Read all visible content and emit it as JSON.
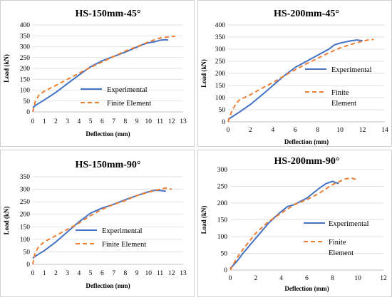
{
  "colors": {
    "experimental": "#4472C4",
    "fe": "#ED7D31",
    "grid": "#d9d9d9",
    "axis": "#bfbfbf"
  },
  "chart_data": [
    {
      "type": "line",
      "title": "HS-150mm-45°",
      "xlabel": "Deflection (mm)",
      "ylabel": "Load (kN)",
      "xlim": [
        0,
        13
      ],
      "ylim": [
        0,
        400
      ],
      "xticks": [
        0,
        1,
        2,
        3,
        4,
        5,
        6,
        7,
        8,
        9,
        10,
        11,
        12,
        13
      ],
      "yticks": [
        0,
        50,
        100,
        150,
        200,
        250,
        300,
        350,
        400
      ],
      "grid": "horizontal",
      "legend": "right",
      "series": [
        {
          "name": "Experimental",
          "style": "solid",
          "x": [
            0,
            0.3,
            1,
            2,
            3,
            4,
            5,
            6,
            7,
            8,
            9,
            9.5,
            10,
            10.5,
            11,
            11.5,
            11.7
          ],
          "y": [
            20,
            32,
            55,
            90,
            130,
            170,
            208,
            235,
            255,
            275,
            298,
            310,
            318,
            322,
            330,
            332,
            330
          ]
        },
        {
          "name": "Finite Element",
          "style": "dashed",
          "x": [
            0,
            0.2,
            0.5,
            1,
            2,
            3,
            4,
            5,
            6,
            7,
            8,
            9,
            10,
            11,
            12,
            12.3
          ],
          "y": [
            0,
            45,
            75,
            95,
            122,
            150,
            178,
            205,
            230,
            255,
            280,
            300,
            322,
            340,
            347,
            348
          ]
        }
      ]
    },
    {
      "type": "line",
      "title": "HS-200mm-45°",
      "xlabel": "Deflection (mm)",
      "ylabel": "Load (kN)",
      "xlim": [
        0,
        14
      ],
      "ylim": [
        0,
        400
      ],
      "xticks": [
        0,
        2,
        4,
        6,
        8,
        10,
        12,
        14
      ],
      "yticks": [
        0,
        50,
        100,
        150,
        200,
        250,
        300,
        350,
        400
      ],
      "grid": "horizontal",
      "legend": "right",
      "series": [
        {
          "name": "Experimental",
          "style": "solid",
          "x": [
            0,
            0.5,
            1,
            2,
            3,
            4,
            5,
            6,
            7,
            8,
            9,
            9.5,
            10,
            10.5,
            11,
            11.5,
            12
          ],
          "y": [
            10,
            25,
            40,
            72,
            110,
            150,
            190,
            225,
            250,
            275,
            300,
            318,
            325,
            330,
            335,
            338,
            335
          ]
        },
        {
          "name": "Finite Element",
          "style": "dashed",
          "x": [
            0,
            0.3,
            0.7,
            1,
            2,
            3,
            4,
            5,
            6,
            7,
            8,
            9,
            10,
            11,
            12,
            12.5,
            13
          ],
          "y": [
            0,
            40,
            75,
            90,
            112,
            138,
            162,
            190,
            215,
            240,
            262,
            285,
            305,
            320,
            333,
            338,
            340
          ]
        }
      ]
    },
    {
      "type": "line",
      "title": "HS-150mm-90°",
      "xlabel": "Deflection (mm)",
      "ylabel": "Load (kN)",
      "xlim": [
        0,
        13
      ],
      "ylim": [
        0,
        350
      ],
      "xticks": [
        0,
        1,
        2,
        3,
        4,
        5,
        6,
        7,
        8,
        9,
        10,
        11,
        12,
        13
      ],
      "yticks": [
        0,
        50,
        100,
        150,
        200,
        250,
        300,
        350
      ],
      "grid": "horizontal",
      "legend": "bottom-right",
      "series": [
        {
          "name": "Experimental",
          "style": "solid",
          "x": [
            0,
            0.3,
            1,
            2,
            3,
            4,
            5,
            6,
            7,
            8,
            9,
            10,
            10.5,
            11,
            11.5
          ],
          "y": [
            25,
            35,
            55,
            90,
            130,
            170,
            205,
            225,
            240,
            258,
            275,
            290,
            295,
            295,
            292
          ]
        },
        {
          "name": "Finite Element",
          "style": "dashed",
          "x": [
            0,
            0.2,
            0.5,
            1,
            2,
            3,
            4,
            5,
            6,
            7,
            8,
            9,
            10,
            11,
            11.5,
            12
          ],
          "y": [
            0,
            45,
            70,
            90,
            115,
            140,
            165,
            195,
            220,
            240,
            255,
            275,
            288,
            300,
            305,
            300
          ]
        }
      ]
    },
    {
      "type": "line",
      "title": "HS-200mm-90°",
      "xlabel": "Deflection (mm)",
      "ylabel": "Load (kN)",
      "xlim": [
        0,
        12
      ],
      "ylim": [
        0,
        300
      ],
      "xticks": [
        0,
        2,
        4,
        6,
        8,
        10,
        12
      ],
      "yticks": [
        0,
        50,
        100,
        150,
        200,
        250,
        300
      ],
      "grid": "horizontal",
      "legend": "right",
      "series": [
        {
          "name": "Experimental",
          "style": "solid",
          "x": [
            0,
            0.5,
            1,
            2,
            3,
            3.5,
            4,
            4.5,
            5,
            6,
            7,
            7.5,
            8,
            8.5
          ],
          "y": [
            5,
            25,
            50,
            95,
            140,
            158,
            175,
            190,
            195,
            215,
            245,
            258,
            265,
            258
          ]
        },
        {
          "name": "Finite Element",
          "style": "dashed",
          "x": [
            0,
            0.5,
            1,
            2,
            3,
            4,
            5,
            6,
            7,
            8,
            9,
            9.5,
            10
          ],
          "y": [
            0,
            35,
            62,
            110,
            145,
            170,
            195,
            210,
            230,
            255,
            272,
            275,
            268
          ]
        }
      ]
    }
  ]
}
